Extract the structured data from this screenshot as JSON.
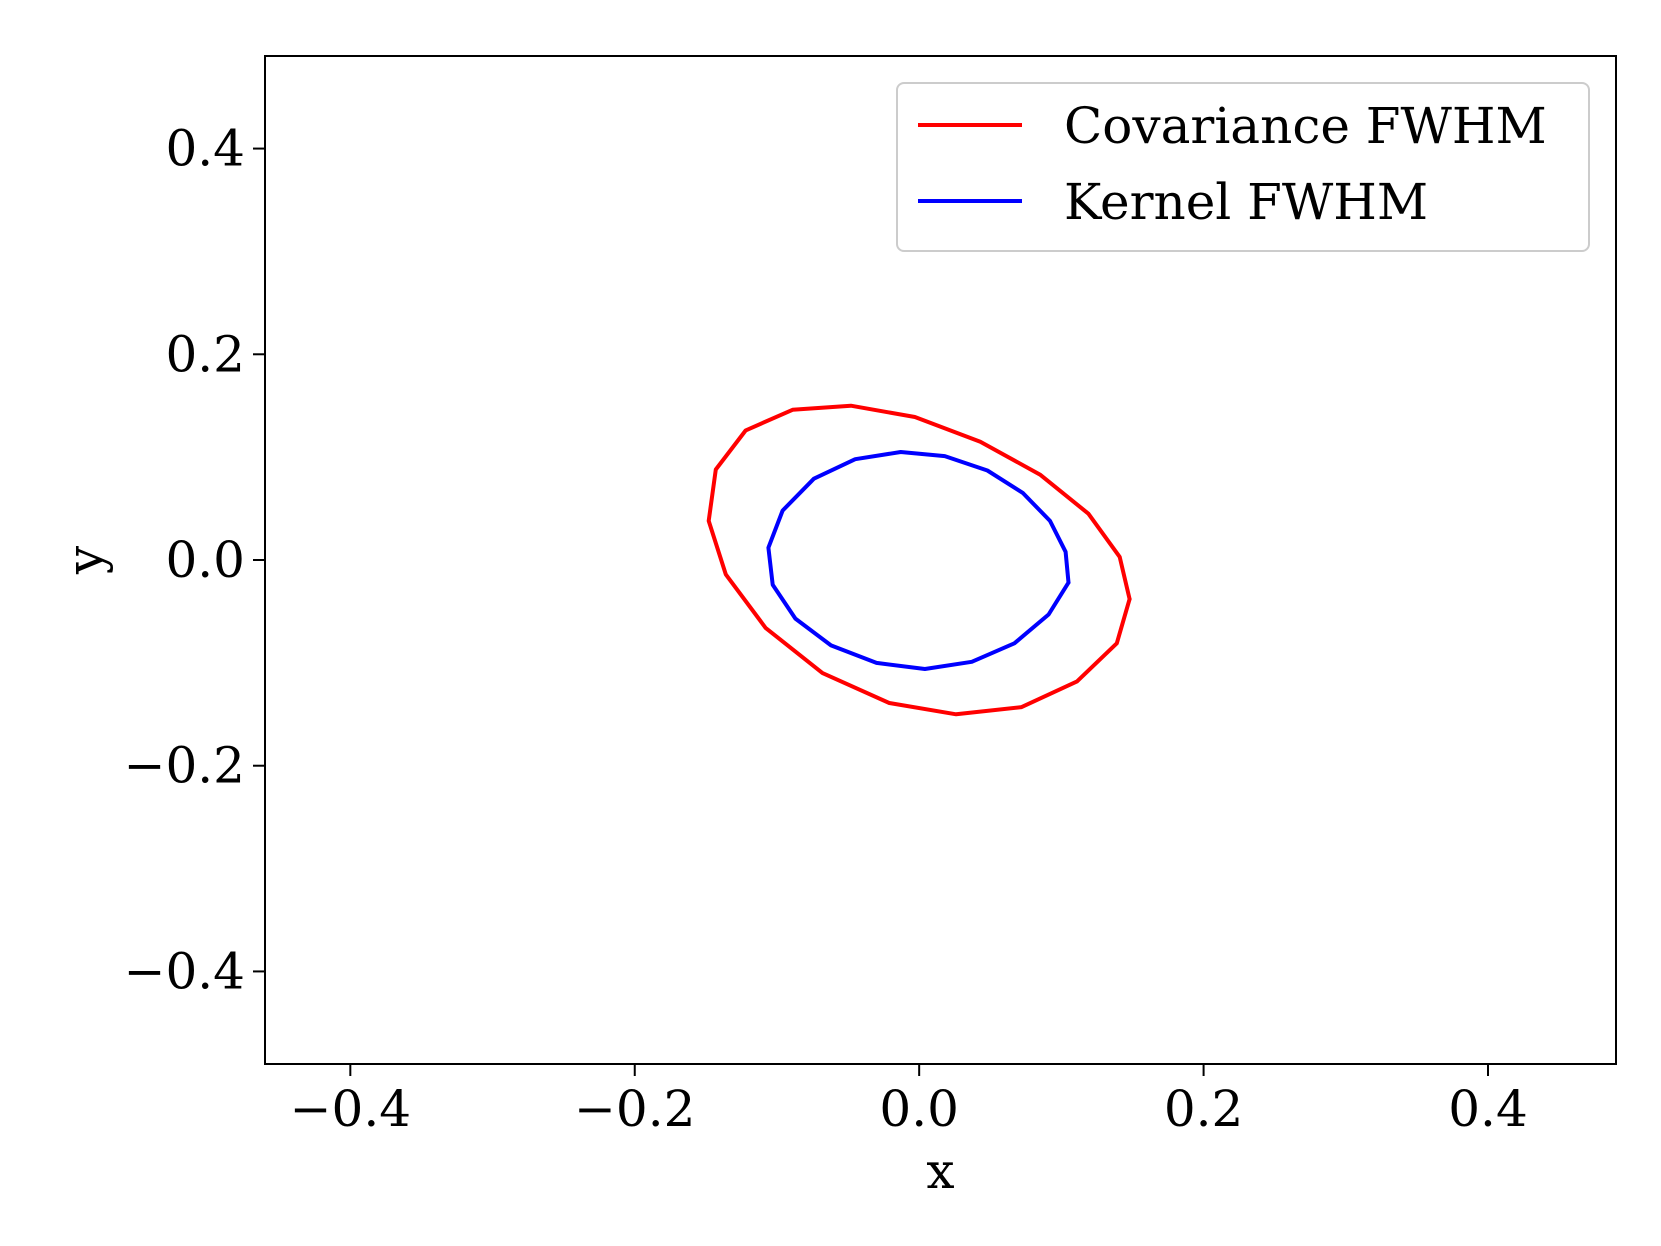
{
  "chart_data": {
    "type": "line",
    "title": "",
    "xlabel": "x",
    "ylabel": "y",
    "xlim": [
      -0.46,
      0.49
    ],
    "ylim": [
      -0.49,
      0.49
    ],
    "xticks": [
      -0.4,
      -0.2,
      0.0,
      0.2,
      0.4
    ],
    "yticks": [
      -0.4,
      -0.2,
      0.0,
      0.2,
      0.4
    ],
    "xtick_labels": [
      "−0.4",
      "−0.2",
      "0.0",
      "0.2",
      "0.4"
    ],
    "ytick_labels": [
      "−0.4",
      "−0.2",
      "0.0",
      "0.2",
      "0.4"
    ],
    "grid": false,
    "legend_position": "top-right",
    "series": [
      {
        "name": "Covariance FWHM",
        "color": "#ff0000",
        "shape": "ellipse",
        "center": [
          0.0,
          0.0
        ],
        "x": [
          0.148,
          0.141,
          0.119,
          0.085,
          0.043,
          -0.003,
          -0.048,
          -0.089,
          -0.122,
          -0.143,
          -0.148,
          -0.136,
          -0.108,
          -0.068,
          -0.021,
          0.026,
          0.072,
          0.111,
          0.139,
          0.148
        ],
        "y": [
          -0.038,
          0.003,
          0.045,
          0.083,
          0.115,
          0.139,
          0.15,
          0.146,
          0.126,
          0.088,
          0.038,
          -0.014,
          -0.066,
          -0.11,
          -0.139,
          -0.15,
          -0.143,
          -0.118,
          -0.081,
          -0.038
        ]
      },
      {
        "name": "Kernel FWHM",
        "color": "#0000ff",
        "shape": "ellipse",
        "center": [
          0.0,
          0.0
        ],
        "x": [
          0.105,
          0.103,
          0.092,
          0.073,
          0.048,
          0.018,
          -0.013,
          -0.045,
          -0.074,
          -0.096,
          -0.106,
          -0.103,
          -0.087,
          -0.062,
          -0.03,
          0.004,
          0.037,
          0.067,
          0.091,
          0.105
        ],
        "y": [
          -0.022,
          0.008,
          0.038,
          0.065,
          0.087,
          0.101,
          0.105,
          0.098,
          0.079,
          0.048,
          0.012,
          -0.024,
          -0.057,
          -0.083,
          -0.1,
          -0.106,
          -0.099,
          -0.081,
          -0.053,
          -0.022
        ]
      }
    ]
  }
}
